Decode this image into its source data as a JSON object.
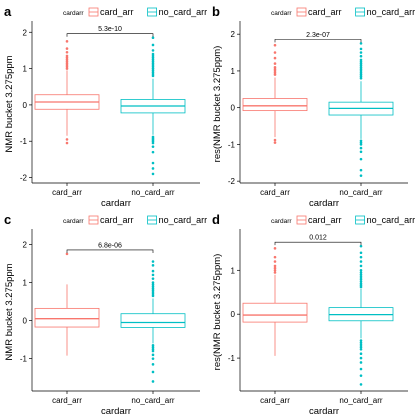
{
  "colors": {
    "card_arr": "#F8766D",
    "no_card_arr": "#00BFC4"
  },
  "chart_data": [
    {
      "type": "box",
      "panel": "a",
      "xlabel": "cardarr",
      "ylabel": "NMR bucket 3.275ppm",
      "categories": [
        "card_arr",
        "no_card_arr"
      ],
      "yticks": [
        -2,
        -1,
        0,
        1,
        2
      ],
      "ylim": [
        -2.15,
        2.2
      ],
      "legend": {
        "title": "cardarr",
        "entries": [
          "card_arr",
          "no_card_arr"
        ],
        "placement": "top"
      },
      "pvalue": "5.3e-10",
      "boxes": [
        {
          "name": "card_arr",
          "whisker_low": -0.85,
          "q1": -0.12,
          "median": 0.08,
          "q3": 0.28,
          "whisker_high": 0.95,
          "outliers": [
            1.0,
            1.05,
            1.1,
            1.15,
            1.2,
            1.25,
            1.3,
            1.35,
            1.45,
            1.55,
            1.75,
            -0.95,
            -1.05
          ]
        },
        {
          "name": "no_card_arr",
          "whisker_low": -0.82,
          "q1": -0.22,
          "median": -0.03,
          "q3": 0.15,
          "whisker_high": 0.72,
          "outliers": [
            0.8,
            0.85,
            0.9,
            0.95,
            1.0,
            1.05,
            1.1,
            1.15,
            1.2,
            1.25,
            1.3,
            1.35,
            1.4,
            1.5,
            1.65,
            1.85,
            -0.88,
            -0.92,
            -0.96,
            -1.0,
            -1.05,
            -1.15,
            -1.3,
            -1.6,
            -1.75,
            -1.9
          ]
        }
      ]
    },
    {
      "type": "box",
      "panel": "b",
      "xlabel": "cardarr",
      "ylabel": "res(NMR bucket 3.275ppm)",
      "categories": [
        "card_arr",
        "no_card_arr"
      ],
      "yticks": [
        -2,
        -1,
        0,
        1,
        2
      ],
      "ylim": [
        -2.05,
        2.25
      ],
      "legend": {
        "title": "cardarr",
        "entries": [
          "card_arr",
          "no_card_arr"
        ],
        "placement": "top"
      },
      "pvalue": "2.3e-07",
      "boxes": [
        {
          "name": "card_arr",
          "whisker_low": -0.8,
          "q1": -0.08,
          "median": 0.05,
          "q3": 0.25,
          "whisker_high": 0.82,
          "outliers": [
            0.9,
            0.95,
            1.0,
            1.05,
            1.1,
            1.2,
            1.35,
            1.5,
            1.7,
            -0.88,
            -0.95
          ]
        },
        {
          "name": "no_card_arr",
          "whisker_low": -0.85,
          "q1": -0.2,
          "median": -0.02,
          "q3": 0.15,
          "whisker_high": 0.72,
          "outliers": [
            0.8,
            0.85,
            0.9,
            0.95,
            1.0,
            1.05,
            1.1,
            1.15,
            1.2,
            1.25,
            1.3,
            1.4,
            1.5,
            1.6,
            1.75,
            -0.9,
            -0.95,
            -1.0,
            -1.1,
            -1.2,
            -1.4,
            -1.7,
            -1.85
          ]
        }
      ]
    },
    {
      "type": "box",
      "panel": "c",
      "xlabel": "cardarr",
      "ylabel": "NMR bucket 3.275ppm",
      "categories": [
        "card_arr",
        "no_card_arr"
      ],
      "yticks": [
        -1,
        0,
        1,
        2
      ],
      "ylim": [
        -1.85,
        2.3
      ],
      "legend": {
        "title": "cardarr",
        "entries": [
          "card_arr",
          "no_card_arr"
        ],
        "placement": "top"
      },
      "pvalue": "6.8e-06",
      "boxes": [
        {
          "name": "card_arr",
          "whisker_low": -0.92,
          "q1": -0.17,
          "median": 0.05,
          "q3": 0.32,
          "whisker_high": 0.95,
          "outliers": [
            1.75
          ]
        },
        {
          "name": "no_card_arr",
          "whisker_low": -0.6,
          "q1": -0.18,
          "median": -0.05,
          "q3": 0.18,
          "whisker_high": 0.58,
          "outliers": [
            0.65,
            0.7,
            0.75,
            0.8,
            0.85,
            0.9,
            0.95,
            1.0,
            1.1,
            1.2,
            1.3,
            1.45,
            1.55,
            -0.65,
            -0.7,
            -0.75,
            -0.8,
            -0.9,
            -1.0,
            -1.15,
            -1.35,
            -1.6
          ]
        }
      ]
    },
    {
      "type": "box",
      "panel": "d",
      "xlabel": "cardarr",
      "ylabel": "res(NMR bucket 3.275ppm)",
      "categories": [
        "card_arr",
        "no_card_arr"
      ],
      "yticks": [
        -1,
        0,
        1
      ],
      "ylim": [
        -1.75,
        1.85
      ],
      "legend": {
        "title": "cardarr",
        "entries": [
          "card_arr",
          "no_card_arr"
        ],
        "placement": "top"
      },
      "pvalue": "0.012",
      "boxes": [
        {
          "name": "card_arr",
          "whisker_low": -0.95,
          "q1": -0.18,
          "median": -0.02,
          "q3": 0.25,
          "whisker_high": 0.9,
          "outliers": [
            0.95,
            1.0,
            1.05,
            1.1,
            1.2,
            1.3,
            1.5
          ]
        },
        {
          "name": "no_card_arr",
          "whisker_low": -0.55,
          "q1": -0.15,
          "median": -0.01,
          "q3": 0.15,
          "whisker_high": 0.58,
          "outliers": [
            0.62,
            0.66,
            0.7,
            0.75,
            0.8,
            0.85,
            0.9,
            0.95,
            1.0,
            1.1,
            1.2,
            1.3,
            1.4,
            1.55,
            -0.6,
            -0.65,
            -0.7,
            -0.75,
            -0.8,
            -0.9,
            -1.0,
            -1.1,
            -1.25,
            -1.4,
            -1.6
          ]
        }
      ]
    }
  ]
}
